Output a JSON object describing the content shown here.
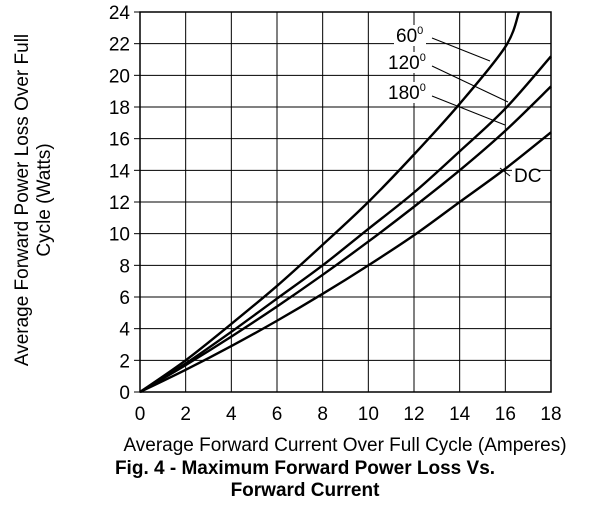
{
  "chart_data": {
    "type": "line",
    "xlabel": "Average Forward Current Over Full Cycle (Amperes)",
    "ylabel_lines": [
      "Average Forward Power Loss Over Full",
      "Cycle (Watts)"
    ],
    "xlim": [
      0,
      18
    ],
    "ylim": [
      0,
      24
    ],
    "x_ticks": [
      0,
      2,
      4,
      6,
      8,
      10,
      12,
      14,
      16,
      18
    ],
    "y_ticks": [
      0,
      2,
      4,
      6,
      8,
      10,
      12,
      14,
      16,
      18,
      20,
      22,
      24
    ],
    "grid": true,
    "series": [
      {
        "name": "60°",
        "x": [
          0,
          2,
          4,
          6,
          8,
          10,
          12,
          14,
          16,
          16.6
        ],
        "y": [
          0,
          2.0,
          4.3,
          6.7,
          9.3,
          12.0,
          15.0,
          18.2,
          21.8,
          24.0
        ]
      },
      {
        "name": "120°",
        "x": [
          0,
          2,
          4,
          6,
          8,
          10,
          12,
          14,
          16,
          18
        ],
        "y": [
          0,
          1.8,
          3.8,
          5.9,
          8.0,
          10.3,
          12.6,
          15.2,
          17.9,
          21.2
        ]
      },
      {
        "name": "180°",
        "x": [
          0,
          2,
          4,
          6,
          8,
          10,
          12,
          14,
          16,
          18
        ],
        "y": [
          0,
          1.7,
          3.5,
          5.4,
          7.4,
          9.5,
          11.7,
          14.0,
          16.5,
          19.3
        ]
      },
      {
        "name": "DC",
        "x": [
          0,
          2,
          4,
          6,
          8,
          10,
          12,
          14,
          16,
          18
        ],
        "y": [
          0,
          1.4,
          2.9,
          4.5,
          6.2,
          8.0,
          9.9,
          12.0,
          14.1,
          16.4
        ]
      }
    ],
    "series_labels": [
      {
        "text": "60",
        "sup": "0",
        "series": 0
      },
      {
        "text": "120",
        "sup": "0",
        "series": 1
      },
      {
        "text": "180",
        "sup": "0",
        "series": 2
      },
      {
        "text": "DC",
        "sup": "",
        "series": 3
      }
    ]
  },
  "caption": {
    "line1": "Fig. 4 - Maximum Forward Power Loss Vs.",
    "line2": "Forward Current"
  }
}
